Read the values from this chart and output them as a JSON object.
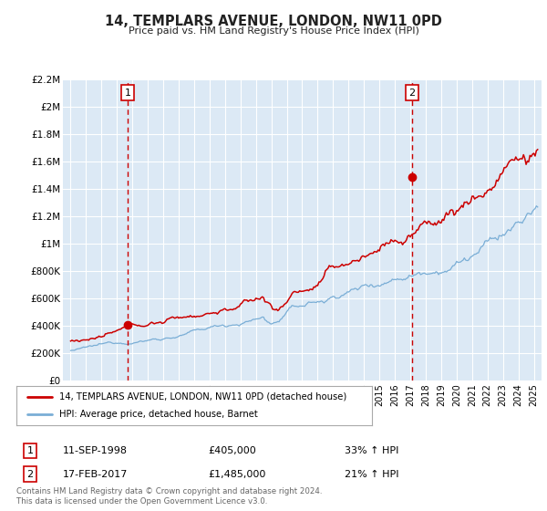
{
  "title": "14, TEMPLARS AVENUE, LONDON, NW11 0PD",
  "subtitle": "Price paid vs. HM Land Registry's House Price Index (HPI)",
  "legend_line1": "14, TEMPLARS AVENUE, LONDON, NW11 0PD (detached house)",
  "legend_line2": "HPI: Average price, detached house, Barnet",
  "footnote1": "Contains HM Land Registry data © Crown copyright and database right 2024.",
  "footnote2": "This data is licensed under the Open Government Licence v3.0.",
  "sale1_date": "11-SEP-1998",
  "sale1_price": "£405,000",
  "sale1_hpi": "33% ↑ HPI",
  "sale2_date": "17-FEB-2017",
  "sale2_price": "£1,485,000",
  "sale2_hpi": "21% ↑ HPI",
  "sale1_x": 1998.7,
  "sale1_y": 405000,
  "sale2_x": 2017.12,
  "sale2_y": 1485000,
  "vline1_x": 1998.7,
  "vline2_x": 2017.12,
  "ylim": [
    0,
    2200000
  ],
  "xlim_start": 1994.5,
  "xlim_end": 2025.5,
  "background_color": "#dce9f5",
  "red_line_color": "#cc0000",
  "blue_line_color": "#7aaed6",
  "vline_color": "#cc0000",
  "marker_color": "#cc0000",
  "grid_color": "#ffffff",
  "title_color": "#222222",
  "box_edge_color": "#cc0000",
  "legend_border_color": "#aaaaaa",
  "footnote_color": "#666666"
}
